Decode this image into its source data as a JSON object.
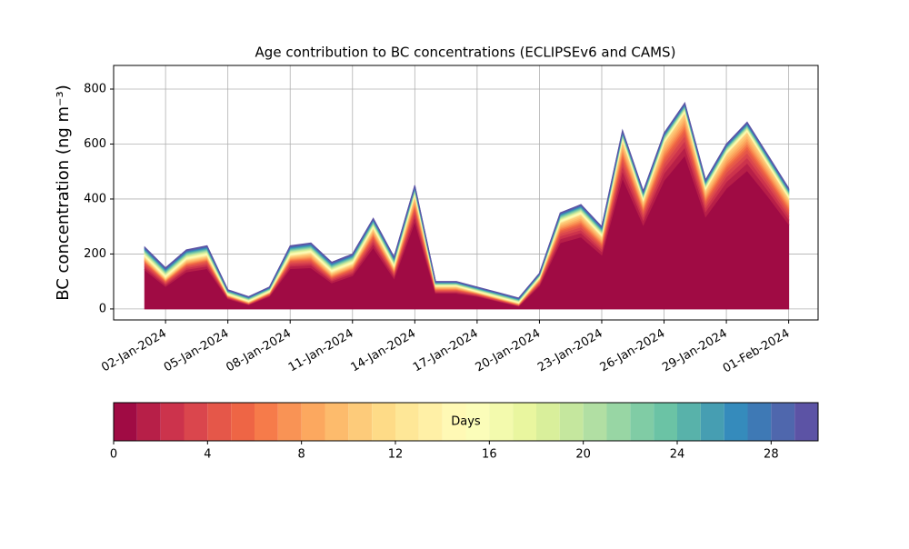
{
  "chart_data": {
    "type": "stackplot",
    "title": "Age contribution to BC concentrations (ECLIPSEv6 and CAMS)",
    "y_label": "BC concentration (ng m⁻³)",
    "x": [
      "2024-01-01",
      "2024-01-02",
      "2024-01-03",
      "2024-01-04",
      "2024-01-05",
      "2024-01-06",
      "2024-01-07",
      "2024-01-08",
      "2024-01-09",
      "2024-01-10",
      "2024-01-11",
      "2024-01-12",
      "2024-01-13",
      "2024-01-14",
      "2024-01-15",
      "2024-01-16",
      "2024-01-17",
      "2024-01-18",
      "2024-01-19",
      "2024-01-20",
      "2024-01-21",
      "2024-01-22",
      "2024-01-23",
      "2024-01-24",
      "2024-01-25",
      "2024-01-26",
      "2024-01-27",
      "2024-01-28",
      "2024-01-29",
      "2024-01-30",
      "2024-01-31",
      "2024-02-01"
    ],
    "xlim": [
      "2023-12-30T12:00:00Z",
      "2024-02-02T10:00:00Z"
    ],
    "xticks": [
      {
        "value": "2024-01-02",
        "label": "02-Jan-2024"
      },
      {
        "value": "2024-01-05",
        "label": "05-Jan-2024"
      },
      {
        "value": "2024-01-08",
        "label": "08-Jan-2024"
      },
      {
        "value": "2024-01-11",
        "label": "11-Jan-2024"
      },
      {
        "value": "2024-01-14",
        "label": "14-Jan-2024"
      },
      {
        "value": "2024-01-17",
        "label": "17-Jan-2024"
      },
      {
        "value": "2024-01-20",
        "label": "20-Jan-2024"
      },
      {
        "value": "2024-01-23",
        "label": "23-Jan-2024"
      },
      {
        "value": "2024-01-26",
        "label": "26-Jan-2024"
      },
      {
        "value": "2024-01-29",
        "label": "29-Jan-2024"
      },
      {
        "value": "2024-02-01",
        "label": "01-Feb-2024"
      }
    ],
    "ylim": [
      -40,
      886
    ],
    "yticks": [
      0,
      200,
      400,
      600,
      800
    ],
    "grid": true,
    "series": [
      {
        "color": "#a00b44",
        "values": [
          142,
          82,
          135,
          147,
          37,
          15,
          46,
          147,
          150,
          95,
          121,
          224,
          111,
          318,
          57,
          57,
          46,
          28,
          10,
          84,
          241,
          262,
          197,
          477,
          306,
          468,
          559,
          336,
          439,
          504,
          410,
          309
        ]
      },
      {
        "color": "#b71f48",
        "values": [
          9,
          6,
          9,
          9,
          3,
          2,
          3,
          9,
          10,
          7,
          8,
          13,
          8,
          18,
          4,
          4,
          3,
          2,
          2,
          5,
          14,
          15,
          12,
          26,
          17,
          26,
          30,
          19,
          24,
          27,
          22,
          18
        ]
      },
      {
        "color": "#cc334c",
        "values": [
          7,
          5,
          6,
          7,
          2,
          1,
          2,
          7,
          7,
          5,
          6,
          10,
          6,
          14,
          3,
          3,
          2,
          2,
          1,
          4,
          11,
          11,
          9,
          20,
          13,
          19,
          23,
          14,
          18,
          20,
          17,
          13
        ]
      },
      {
        "color": "#da464d",
        "values": [
          6,
          4,
          5,
          6,
          2,
          1,
          2,
          6,
          6,
          4,
          5,
          8,
          5,
          11,
          3,
          3,
          2,
          2,
          1,
          3,
          9,
          10,
          8,
          16,
          11,
          16,
          19,
          12,
          15,
          17,
          14,
          11
        ]
      },
      {
        "color": "#e55749",
        "values": [
          5,
          3,
          4,
          5,
          1,
          1,
          2,
          5,
          5,
          3,
          4,
          7,
          4,
          9,
          2,
          2,
          2,
          1,
          1,
          3,
          7,
          8,
          6,
          13,
          9,
          13,
          15,
          9,
          12,
          14,
          11,
          9
        ]
      },
      {
        "color": "#ee6545",
        "values": [
          3,
          2,
          3,
          3,
          1,
          1,
          1,
          3,
          4,
          3,
          3,
          5,
          3,
          7,
          2,
          2,
          1,
          1,
          1,
          2,
          5,
          6,
          5,
          10,
          6,
          10,
          11,
          7,
          9,
          10,
          8,
          7
        ]
      },
      {
        "color": "#f67b4a",
        "values": [
          3,
          2,
          3,
          3,
          1,
          1,
          1,
          3,
          4,
          3,
          3,
          5,
          3,
          7,
          2,
          2,
          1,
          1,
          1,
          2,
          5,
          6,
          5,
          10,
          6,
          10,
          11,
          7,
          9,
          10,
          8,
          7
        ]
      },
      {
        "color": "#f99355",
        "values": [
          3,
          2,
          3,
          3,
          1,
          1,
          1,
          3,
          4,
          3,
          3,
          5,
          3,
          7,
          2,
          2,
          1,
          1,
          1,
          2,
          5,
          6,
          5,
          10,
          6,
          10,
          11,
          7,
          9,
          10,
          8,
          7
        ]
      },
      {
        "color": "#fca85f",
        "values": [
          3,
          2,
          3,
          3,
          1,
          1,
          1,
          3,
          4,
          3,
          3,
          5,
          3,
          7,
          2,
          2,
          1,
          1,
          1,
          2,
          5,
          6,
          5,
          10,
          6,
          10,
          11,
          7,
          9,
          10,
          8,
          7
        ]
      },
      {
        "color": "#fdbb6c",
        "values": [
          3,
          2,
          3,
          3,
          1,
          1,
          1,
          3,
          4,
          3,
          3,
          5,
          3,
          7,
          2,
          2,
          1,
          1,
          1,
          2,
          5,
          6,
          5,
          10,
          6,
          10,
          11,
          7,
          9,
          10,
          8,
          7
        ]
      },
      {
        "color": "#fdcb7a",
        "values": [
          3,
          2,
          3,
          3,
          1,
          1,
          1,
          3,
          4,
          3,
          3,
          5,
          3,
          7,
          2,
          2,
          1,
          1,
          1,
          2,
          5,
          6,
          5,
          10,
          6,
          10,
          11,
          7,
          9,
          10,
          8,
          7
        ]
      },
      {
        "color": "#fedb87",
        "values": [
          2,
          2,
          2,
          2,
          1,
          1,
          1,
          2,
          2,
          2,
          2,
          2,
          2,
          2,
          1,
          1,
          1,
          1,
          1,
          1,
          2,
          2,
          2,
          2,
          2,
          2,
          2,
          2,
          2,
          2,
          2,
          2
        ]
      },
      {
        "color": "#fee797",
        "values": [
          2,
          2,
          2,
          2,
          1,
          1,
          1,
          2,
          2,
          2,
          2,
          2,
          2,
          2,
          1,
          1,
          1,
          1,
          1,
          1,
          2,
          2,
          2,
          2,
          2,
          2,
          2,
          2,
          2,
          2,
          2,
          2
        ]
      },
      {
        "color": "#fff0a6",
        "values": [
          2,
          2,
          2,
          2,
          1,
          1,
          1,
          2,
          2,
          2,
          2,
          2,
          2,
          2,
          1,
          1,
          1,
          1,
          1,
          1,
          2,
          2,
          2,
          2,
          2,
          2,
          2,
          2,
          2,
          2,
          2,
          2
        ]
      },
      {
        "color": "#fff9b5",
        "values": [
          2,
          2,
          2,
          2,
          1,
          1,
          1,
          2,
          2,
          2,
          2,
          2,
          2,
          2,
          1,
          1,
          1,
          1,
          1,
          1,
          2,
          2,
          2,
          2,
          2,
          2,
          2,
          2,
          2,
          2,
          2,
          2
        ]
      },
      {
        "color": "#fbfdb9",
        "values": [
          2,
          2,
          2,
          2,
          1,
          1,
          1,
          2,
          2,
          2,
          2,
          2,
          2,
          2,
          1,
          1,
          1,
          1,
          1,
          1,
          2,
          2,
          2,
          2,
          2,
          2,
          2,
          2,
          2,
          2,
          2,
          2
        ]
      },
      {
        "color": "#f3faad",
        "values": [
          2,
          2,
          2,
          2,
          1,
          1,
          1,
          2,
          2,
          2,
          2,
          2,
          2,
          2,
          1,
          1,
          1,
          1,
          1,
          1,
          2,
          2,
          2,
          2,
          2,
          2,
          2,
          2,
          2,
          2,
          2,
          2
        ]
      },
      {
        "color": "#e9f69f",
        "values": [
          2,
          2,
          2,
          2,
          1,
          1,
          1,
          2,
          2,
          2,
          2,
          2,
          2,
          2,
          1,
          1,
          1,
          1,
          1,
          1,
          2,
          2,
          2,
          2,
          2,
          2,
          2,
          2,
          2,
          2,
          2,
          2
        ]
      },
      {
        "color": "#d9ef9b",
        "values": [
          2,
          2,
          2,
          2,
          1,
          1,
          1,
          2,
          2,
          2,
          2,
          2,
          2,
          2,
          1,
          1,
          1,
          1,
          1,
          1,
          2,
          2,
          2,
          2,
          2,
          2,
          2,
          2,
          2,
          2,
          2,
          2
        ]
      },
      {
        "color": "#c5e79e",
        "values": [
          2,
          2,
          2,
          2,
          1,
          1,
          1,
          2,
          2,
          2,
          2,
          2,
          2,
          2,
          1,
          1,
          1,
          1,
          1,
          1,
          2,
          2,
          2,
          2,
          2,
          2,
          2,
          2,
          2,
          2,
          2,
          2
        ]
      },
      {
        "color": "#b1dfa3",
        "values": [
          2,
          2,
          2,
          2,
          1,
          1,
          1,
          2,
          2,
          2,
          2,
          2,
          2,
          2,
          1,
          1,
          1,
          1,
          1,
          1,
          2,
          2,
          2,
          2,
          2,
          2,
          2,
          2,
          2,
          2,
          2,
          2
        ]
      },
      {
        "color": "#98d6a4",
        "values": [
          2,
          2,
          2,
          2,
          1,
          1,
          1,
          2,
          2,
          2,
          2,
          2,
          2,
          2,
          1,
          1,
          1,
          1,
          1,
          1,
          2,
          2,
          2,
          2,
          2,
          2,
          2,
          2,
          2,
          2,
          2,
          2
        ]
      },
      {
        "color": "#80cca5",
        "values": [
          2,
          2,
          2,
          2,
          1,
          1,
          1,
          2,
          2,
          2,
          2,
          2,
          2,
          2,
          1,
          1,
          1,
          1,
          1,
          1,
          2,
          2,
          2,
          2,
          2,
          2,
          2,
          2,
          2,
          2,
          2,
          2
        ]
      },
      {
        "color": "#6bc3a5",
        "values": [
          2,
          2,
          2,
          2,
          1,
          1,
          1,
          2,
          2,
          2,
          2,
          2,
          2,
          2,
          1,
          1,
          1,
          1,
          1,
          1,
          2,
          2,
          2,
          2,
          2,
          2,
          2,
          2,
          2,
          2,
          2,
          2
        ]
      },
      {
        "color": "#58b2aa",
        "values": [
          2,
          2,
          2,
          2,
          1,
          1,
          1,
          2,
          2,
          2,
          2,
          2,
          2,
          2,
          1,
          1,
          1,
          1,
          1,
          1,
          2,
          2,
          2,
          2,
          2,
          2,
          2,
          2,
          2,
          2,
          2,
          2
        ]
      },
      {
        "color": "#469eb2",
        "values": [
          2,
          2,
          2,
          2,
          1,
          1,
          1,
          2,
          2,
          2,
          2,
          2,
          2,
          2,
          1,
          1,
          1,
          1,
          1,
          1,
          2,
          2,
          2,
          2,
          2,
          2,
          2,
          2,
          2,
          2,
          2,
          2
        ]
      },
      {
        "color": "#358bbc",
        "values": [
          2,
          2,
          2,
          2,
          1,
          1,
          1,
          2,
          2,
          2,
          2,
          2,
          2,
          2,
          1,
          1,
          1,
          1,
          1,
          1,
          2,
          2,
          2,
          2,
          2,
          2,
          2,
          2,
          2,
          2,
          2,
          2
        ]
      },
      {
        "color": "#3e79b5",
        "values": [
          2,
          2,
          2,
          2,
          1,
          1,
          1,
          2,
          2,
          2,
          2,
          2,
          2,
          2,
          1,
          1,
          1,
          1,
          1,
          1,
          2,
          2,
          2,
          2,
          2,
          2,
          2,
          2,
          2,
          2,
          2,
          2
        ]
      },
      {
        "color": "#4f67ad",
        "values": [
          2,
          2,
          2,
          2,
          1,
          1,
          1,
          2,
          2,
          2,
          2,
          2,
          2,
          2,
          1,
          1,
          1,
          1,
          1,
          1,
          2,
          2,
          2,
          2,
          2,
          2,
          2,
          2,
          2,
          2,
          2,
          2
        ]
      },
      {
        "color": "#5c53a5",
        "values": [
          2,
          2,
          2,
          2,
          1,
          1,
          1,
          2,
          2,
          2,
          2,
          2,
          2,
          2,
          1,
          1,
          1,
          1,
          1,
          1,
          2,
          2,
          2,
          2,
          2,
          2,
          2,
          2,
          2,
          2,
          2,
          2
        ]
      }
    ],
    "colorbar": {
      "label": "Days",
      "lim": [
        0,
        30
      ],
      "levels": [
        0,
        1,
        2,
        3,
        4,
        5,
        6,
        7,
        8,
        9,
        10,
        11,
        12,
        13,
        14,
        15,
        16,
        17,
        18,
        19,
        20,
        21,
        22,
        23,
        24,
        25,
        26,
        27,
        28,
        29,
        30
      ],
      "ticks": [
        0,
        4,
        8,
        12,
        16,
        20,
        24,
        28
      ]
    }
  }
}
